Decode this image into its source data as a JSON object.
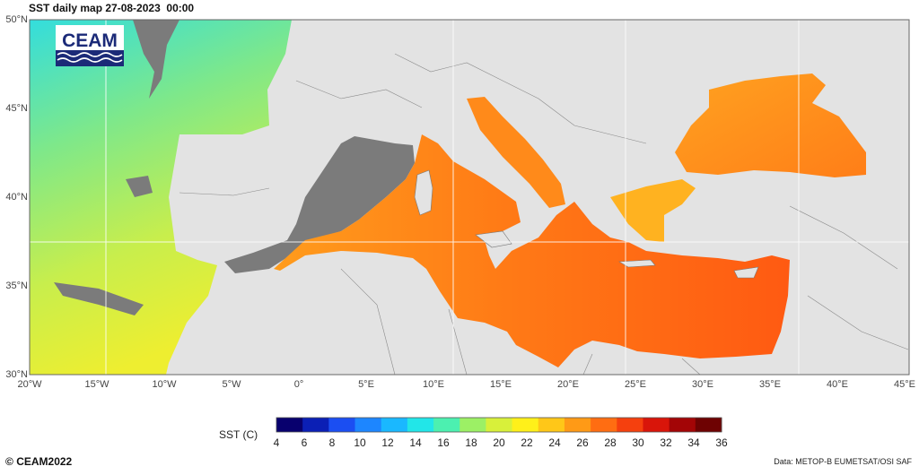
{
  "title": "SST daily map 27-08-2023  00:00",
  "logo": {
    "text": "CEAM"
  },
  "axes": {
    "x_ticks": [
      "20°W",
      "15°W",
      "10°W",
      "5°W",
      "0°",
      "5°E",
      "10°E",
      "15°E",
      "20°E",
      "25°E",
      "30°E",
      "35°E",
      "40°E",
      "45°E"
    ],
    "y_ticks": [
      "50°N",
      "45°N",
      "40°N",
      "35°N",
      "30°N"
    ]
  },
  "colorbar": {
    "label": "SST (C)",
    "ticks": [
      "4",
      "6",
      "8",
      "10",
      "12",
      "14",
      "16",
      "18",
      "20",
      "22",
      "24",
      "26",
      "28",
      "30",
      "32",
      "34",
      "36"
    ],
    "colors": [
      "#08006e",
      "#0b1fb5",
      "#1b4ef2",
      "#1d86ff",
      "#1ab8ff",
      "#22e6e8",
      "#4cf0b0",
      "#9cf065",
      "#d8f03a",
      "#fff01a",
      "#ffc718",
      "#ff9a16",
      "#ff6d12",
      "#f5400e",
      "#d9150a",
      "#a30506",
      "#6e0202"
    ]
  },
  "footer": {
    "copyright": "CEAM2022",
    "source": "Data: METOP-B EUMETSAT/OSI SAF"
  }
}
